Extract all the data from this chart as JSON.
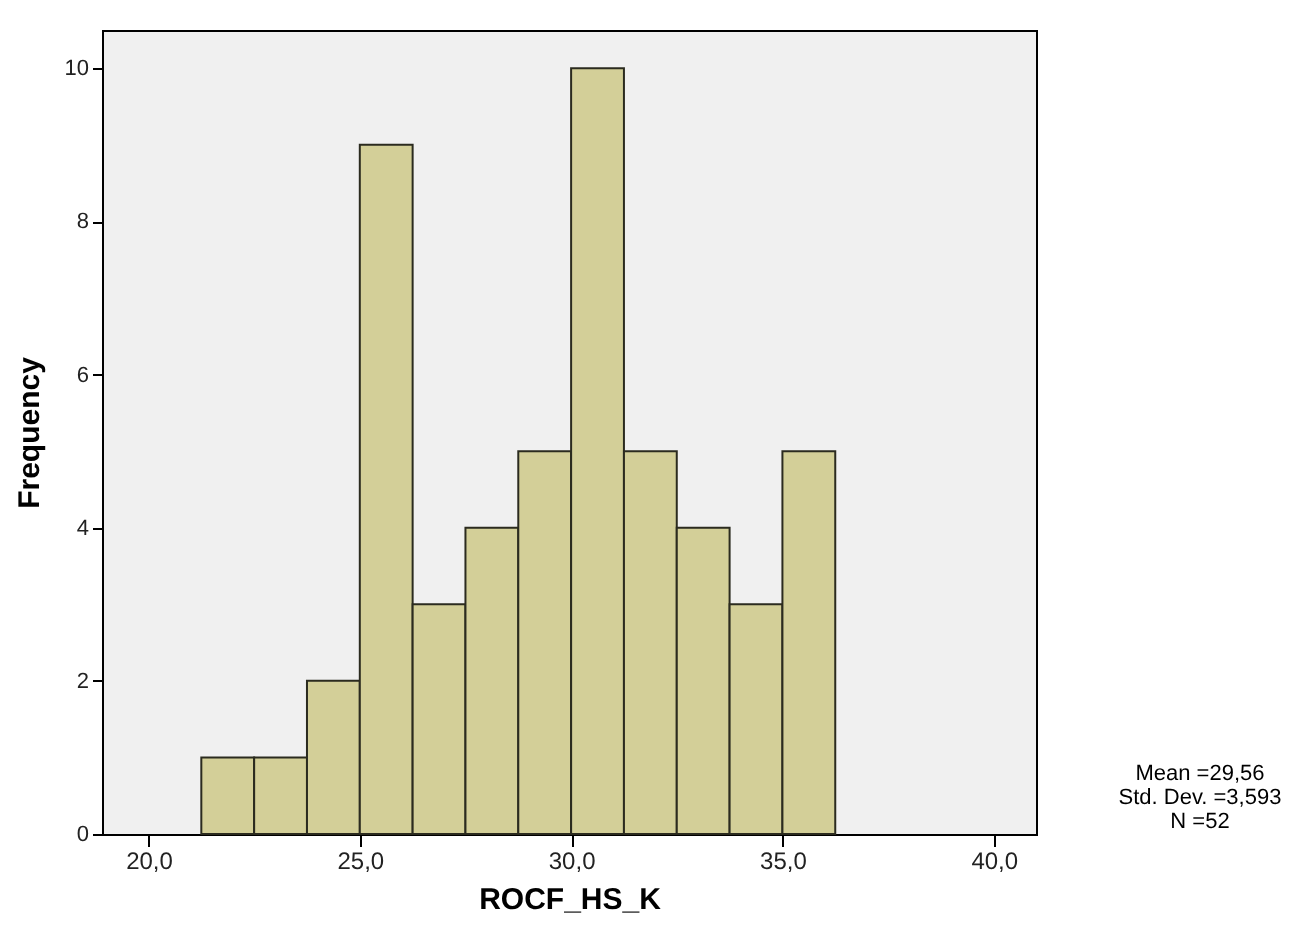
{
  "chart_data": {
    "type": "histogram",
    "xlabel": "ROCF_HS_K",
    "ylabel": "Frequency",
    "color": "#d3cf98",
    "bins": [
      21.25,
      22.5,
      23.75,
      25,
      26.25,
      27.5,
      28.75,
      30,
      31.25,
      32.5,
      33.75,
      35,
      36.25
    ],
    "values": [
      1,
      1,
      2,
      9,
      3,
      4,
      5,
      10,
      5,
      4,
      3,
      5
    ],
    "xlim": [
      18.9,
      41.0
    ],
    "xticks": [
      {
        "value": 20,
        "label": "20,0"
      },
      {
        "value": 25,
        "label": "25,0"
      },
      {
        "value": 30,
        "label": "30,0"
      },
      {
        "value": 35,
        "label": "35,0"
      },
      {
        "value": 40,
        "label": "40,0"
      }
    ],
    "ylim": [
      0,
      10.5
    ],
    "yticks": [
      0,
      2,
      4,
      6,
      8,
      10
    ],
    "grid": false,
    "annotations": [
      "Mean =29,56",
      "Std. Dev. =3,593",
      "N =52"
    ]
  }
}
